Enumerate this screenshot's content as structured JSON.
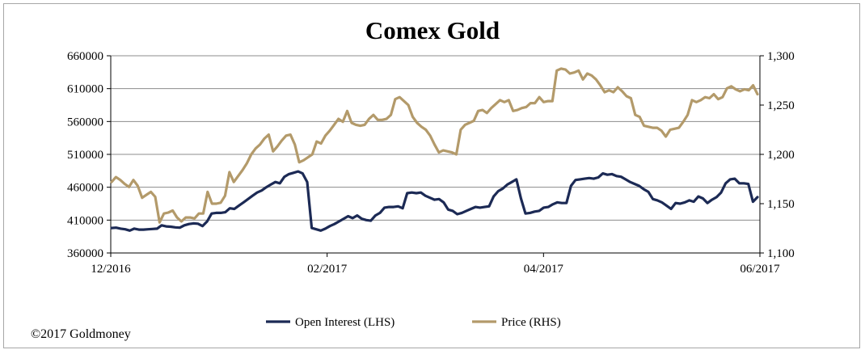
{
  "chart_data": {
    "type": "line",
    "title": "Comex Gold",
    "x_tick_labels": [
      "12/2016",
      "02/2017",
      "04/2017",
      "06/2017"
    ],
    "y_left": {
      "ticks": [
        "660000",
        "610000",
        "560000",
        "510000",
        "460000",
        "410000",
        "360000"
      ],
      "min": 360000,
      "max": 660000
    },
    "y_right": {
      "ticks": [
        "1,300",
        "1,250",
        "1,200",
        "1,150",
        "1,100"
      ],
      "min": 1100,
      "max": 1300
    },
    "grid": true,
    "legend_position": "bottom",
    "series": [
      {
        "name": "Open Interest (LHS)",
        "axis": "left",
        "color": "#1c2a55",
        "values": [
          398000,
          398500,
          397000,
          396000,
          394000,
          397000,
          395500,
          395500,
          396000,
          396500,
          397000,
          402000,
          400500,
          400000,
          399000,
          398500,
          402000,
          404000,
          405000,
          404500,
          401000,
          408000,
          420000,
          421000,
          421000,
          422000,
          428000,
          427000,
          432000,
          437000,
          442000,
          447000,
          452000,
          455000,
          460000,
          464000,
          468000,
          466000,
          476000,
          480000,
          482000,
          484000,
          481000,
          468000,
          398000,
          396000,
          394000,
          397000,
          401000,
          404000,
          408000,
          412000,
          416000,
          413000,
          417000,
          412000,
          410000,
          409000,
          417000,
          421000,
          429000,
          430000,
          430000,
          431000,
          428000,
          451000,
          452000,
          451000,
          452000,
          447000,
          444000,
          441000,
          442000,
          437000,
          426000,
          424000,
          419000,
          421000,
          424000,
          427000,
          430000,
          429000,
          430000,
          431000,
          446000,
          454000,
          458000,
          464000,
          468000,
          472000,
          443000,
          420000,
          421000,
          423000,
          424000,
          429000,
          430000,
          434000,
          437000,
          436000,
          436000,
          462000,
          471000,
          472000,
          473000,
          474000,
          473000,
          475000,
          481000,
          479000,
          480000,
          477000,
          476000,
          472000,
          468000,
          465000,
          462000,
          457000,
          453000,
          442000,
          440000,
          437000,
          432000,
          427000,
          436000,
          435000,
          437000,
          440000,
          438000,
          446000,
          443000,
          436000,
          441000,
          445000,
          452000,
          466000,
          472000,
          473000,
          466000,
          466000,
          465000,
          438000,
          445000
        ],
        "display_x_range": [
          0,
          141
        ]
      },
      {
        "name": "Price (RHS)",
        "axis": "right",
        "color": "#b39a6a",
        "values": [
          1172,
          1177,
          1174,
          1170,
          1167,
          1174,
          1168,
          1156,
          1159,
          1162,
          1157,
          1131,
          1140,
          1141,
          1143,
          1136,
          1132,
          1136,
          1136,
          1135,
          1140,
          1140,
          1162,
          1150,
          1150,
          1151,
          1158,
          1182,
          1172,
          1178,
          1184,
          1191,
          1200,
          1206,
          1210,
          1216,
          1220,
          1203,
          1208,
          1214,
          1219,
          1220,
          1210,
          1192,
          1194,
          1197,
          1200,
          1213,
          1211,
          1219,
          1224,
          1230,
          1236,
          1233,
          1244,
          1232,
          1230,
          1229,
          1230,
          1236,
          1240,
          1235,
          1235,
          1236,
          1240,
          1256,
          1258,
          1254,
          1250,
          1238,
          1232,
          1228,
          1225,
          1219,
          1210,
          1202,
          1204,
          1203,
          1202,
          1200,
          1225,
          1230,
          1232,
          1234,
          1244,
          1245,
          1242,
          1247,
          1251,
          1255,
          1253,
          1255,
          1244,
          1245,
          1247,
          1248,
          1252,
          1252,
          1258,
          1253,
          1254,
          1254,
          1285,
          1287,
          1286,
          1282,
          1283,
          1285,
          1276,
          1282,
          1280,
          1276,
          1270,
          1263,
          1265,
          1263,
          1268,
          1264,
          1259,
          1257,
          1240,
          1238,
          1229,
          1228,
          1227,
          1227,
          1224,
          1218,
          1225,
          1226,
          1227,
          1233,
          1240,
          1255,
          1253,
          1255,
          1258,
          1257,
          1261,
          1256,
          1258,
          1267,
          1269,
          1266,
          1264,
          1266,
          1265,
          1270,
          1261
        ]
      }
    ]
  },
  "footer": {
    "copyright": "©2017 Goldmoney"
  }
}
